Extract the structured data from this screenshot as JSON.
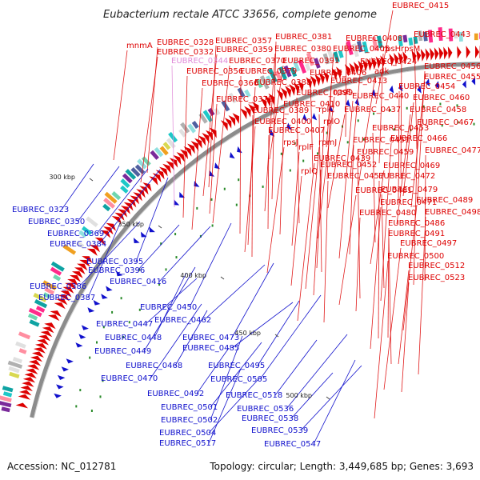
{
  "title": "Eubacterium rectale ATCC 33656, complete genome",
  "footer": {
    "accession": "Accession: NC_012781",
    "summary": "Topology: circular; Length: 3,449,685 bp; Genes: 3,693"
  },
  "colors": {
    "forward": "#dd0000",
    "reverse": "#1010cc",
    "highlight": "#e08ad8",
    "backbone": "#8c8c8c"
  },
  "ticks": [
    "300 kbp",
    "350 kbp",
    "400 kbp",
    "450 kbp",
    "500 kbp"
  ],
  "forward_labels": [
    {
      "text": "EUBREC_0415"
    },
    {
      "text": "mnmA"
    },
    {
      "text": "EUBREC_0328"
    },
    {
      "text": "EUBREC_0357"
    },
    {
      "text": "EUBREC_0381"
    },
    {
      "text": "EUBREC_0408"
    },
    {
      "text": "EUBREC_0443"
    },
    {
      "text": "EUBREC_0332"
    },
    {
      "text": "EUBREC_0359"
    },
    {
      "text": "EUBREC_0380"
    },
    {
      "text": "EUBREC_0405"
    },
    {
      "text": "rpsH"
    },
    {
      "text": "rpsM"
    },
    {
      "text": "EUBREC_0344",
      "highlight": true
    },
    {
      "text": "EUBREC_0370"
    },
    {
      "text": "EUBREC_0391"
    },
    {
      "text": "EUBREC_0424"
    },
    {
      "text": "EUBREC_0456"
    },
    {
      "text": "EUBREC_0356"
    },
    {
      "text": "EUBREC_0379"
    },
    {
      "text": "EUBREC_0406"
    },
    {
      "text": "adk"
    },
    {
      "text": "EUBREC_0455"
    },
    {
      "text": "EUBREC_0366"
    },
    {
      "text": "EUBREC_0388"
    },
    {
      "text": "EUBREC_0413"
    },
    {
      "text": "EUBREC_0454"
    },
    {
      "text": "EUBREC_0399"
    },
    {
      "text": "rpsE"
    },
    {
      "text": "EUBREC_0440"
    },
    {
      "text": "EUBREC_0460"
    },
    {
      "text": "EUBREC_0378"
    },
    {
      "text": "EUBREC_0410"
    },
    {
      "text": "EUBREC_0389"
    },
    {
      "text": "rplC"
    },
    {
      "text": "EUBREC_0437"
    },
    {
      "text": "EUBREC_0458"
    },
    {
      "text": "EUBREC_0400"
    },
    {
      "text": "rplO"
    },
    {
      "text": "EUBREC_0467"
    },
    {
      "text": "EUBREC_0407"
    },
    {
      "text": "EUBREC_0453"
    },
    {
      "text": "rpsJ"
    },
    {
      "text": "rpmJ"
    },
    {
      "text": "EUBREC_0466"
    },
    {
      "text": "rplF"
    },
    {
      "text": "EUBREC_0451"
    },
    {
      "text": "EUBREC_0477"
    },
    {
      "text": "EUBREC_0459"
    },
    {
      "text": "EUBREC_0439"
    },
    {
      "text": "EUBREC_0469"
    },
    {
      "text": "rplQ"
    },
    {
      "text": "EUBREC_0452"
    },
    {
      "text": "EUBREC_0457"
    },
    {
      "text": "EUBREC_0472"
    },
    {
      "text": "EUBREC_0479"
    },
    {
      "text": "EUBREC_0461"
    },
    {
      "text": "EUBREC_0489"
    },
    {
      "text": "EUBREC_0471"
    },
    {
      "text": "EUBREC_0498"
    },
    {
      "text": "EUBREC_0480"
    },
    {
      "text": "EUBREC_0486"
    },
    {
      "text": "EUBREC_0491"
    },
    {
      "text": "EUBREC_0497"
    },
    {
      "text": "EUBREC_0500"
    },
    {
      "text": "EUBREC_0512"
    },
    {
      "text": "EUBREC_0523"
    }
  ],
  "reverse_labels": [
    {
      "text": "EUBREC_0323"
    },
    {
      "text": "EUBREC_0350"
    },
    {
      "text": "EUBREC_0369"
    },
    {
      "text": "EUBREC_0384"
    },
    {
      "text": "EUBREC_0395"
    },
    {
      "text": "EUBREC_0396"
    },
    {
      "text": "EUBREC_0416"
    },
    {
      "text": "EUBREC_0386"
    },
    {
      "text": "EUBREC_0387"
    },
    {
      "text": "EUBREC_0450"
    },
    {
      "text": "EUBREC_0447"
    },
    {
      "text": "EUBREC_0462"
    },
    {
      "text": "EUBREC_0448"
    },
    {
      "text": "EUBREC_0473"
    },
    {
      "text": "EUBREC_0449"
    },
    {
      "text": "EUBREC_0485"
    },
    {
      "text": "EUBREC_0468"
    },
    {
      "text": "EUBREC_0495"
    },
    {
      "text": "EUBREC_0470"
    },
    {
      "text": "EUBREC_0505"
    },
    {
      "text": "EUBREC_0492"
    },
    {
      "text": "EUBREC_0518"
    },
    {
      "text": "EUBREC_0501"
    },
    {
      "text": "EUBREC_0536"
    },
    {
      "text": "EUBREC_0502"
    },
    {
      "text": "EUBREC_0538"
    },
    {
      "text": "EUBREC_0504"
    },
    {
      "text": "EUBREC_0539"
    },
    {
      "text": "EUBREC_0517"
    },
    {
      "text": "EUBREC_0547"
    }
  ]
}
